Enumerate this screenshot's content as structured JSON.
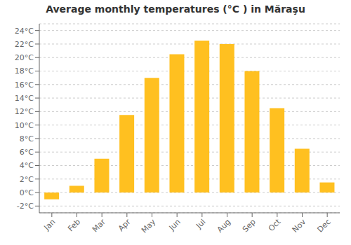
{
  "chart_data": {
    "type": "bar",
    "title": "Average monthly temperatures (°C ) in Măraşu",
    "categories": [
      "Jan",
      "Feb",
      "Mar",
      "Apr",
      "May",
      "Jun",
      "Jul",
      "Aug",
      "Sep",
      "Oct",
      "Nov",
      "Dec"
    ],
    "values": [
      -1.0,
      1.0,
      5.0,
      11.5,
      17.0,
      20.5,
      22.5,
      22.0,
      18.0,
      12.5,
      6.5,
      1.5
    ],
    "color": "#FFC020",
    "ylim": [
      -3,
      25
    ],
    "yticks": [
      {
        "value": -2,
        "label": "-2°C"
      },
      {
        "value": 0,
        "label": "0°C"
      },
      {
        "value": 2,
        "label": "2°C"
      },
      {
        "value": 4,
        "label": "4°C"
      },
      {
        "value": 6,
        "label": "6°C"
      },
      {
        "value": 8,
        "label": "8°C"
      },
      {
        "value": 10,
        "label": "10°C"
      },
      {
        "value": 12,
        "label": "12°C"
      },
      {
        "value": 14,
        "label": "14°C"
      },
      {
        "value": 16,
        "label": "16°C"
      },
      {
        "value": 18,
        "label": "18°C"
      },
      {
        "value": 20,
        "label": "20°C"
      },
      {
        "value": 22,
        "label": "22°C"
      },
      {
        "value": 24,
        "label": "24°C"
      }
    ],
    "grid": true
  }
}
